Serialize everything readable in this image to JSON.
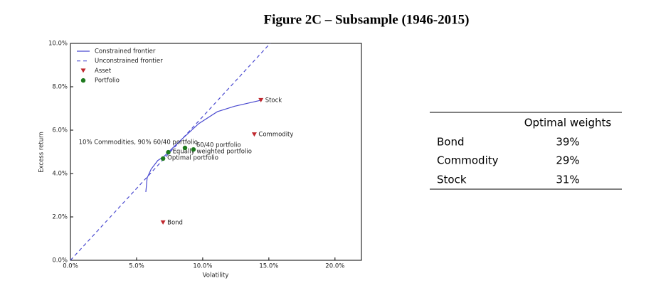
{
  "title": "Figure 2C – Subsample (1946-2015)",
  "chart_data": {
    "type": "line",
    "xlabel": "Volatility",
    "ylabel": "Excess return",
    "xlim": [
      0,
      22
    ],
    "ylim": [
      0,
      10
    ],
    "xticks": [
      {
        "value": 0,
        "label": "0.0%"
      },
      {
        "value": 5,
        "label": "5.0%"
      },
      {
        "value": 10,
        "label": "10.0%"
      },
      {
        "value": 15,
        "label": "15.0%"
      },
      {
        "value": 20,
        "label": "20.0%"
      }
    ],
    "yticks": [
      {
        "value": 0,
        "label": "0.0%"
      },
      {
        "value": 2,
        "label": "2.0%"
      },
      {
        "value": 4,
        "label": "4.0%"
      },
      {
        "value": 6,
        "label": "6.0%"
      },
      {
        "value": 8,
        "label": "8.0%"
      },
      {
        "value": 10,
        "label": "10.0%"
      }
    ],
    "legend": "upper left",
    "series": [
      {
        "name": "Constrained frontier",
        "color": "#4a4ad0",
        "style": "solid",
        "x": [
          5.7,
          5.8,
          6.1,
          6.6,
          7.1,
          8.1,
          9.7,
          11.1,
          12.4,
          14.4
        ],
        "values": [
          3.15,
          3.8,
          4.2,
          4.6,
          4.8,
          5.4,
          6.3,
          6.85,
          7.1,
          7.38
        ]
      },
      {
        "name": "Unconstrained frontier",
        "color": "#4a4ad0",
        "style": "dashed",
        "x": [
          0,
          15.1
        ],
        "values": [
          0,
          10
        ]
      },
      {
        "name": "Asset",
        "color": "#c0272d",
        "style": "marker",
        "marker": "triangle",
        "x": [
          7.0,
          13.9,
          14.4
        ],
        "values": [
          1.74,
          5.8,
          7.38
        ],
        "point_labels": [
          "Bond",
          "Commodity",
          "Stock"
        ]
      },
      {
        "name": "Portfolio",
        "color": "#1e7a1e",
        "style": "marker",
        "marker": "circle",
        "x": [
          7.0,
          7.4,
          9.3,
          8.66
        ],
        "values": [
          4.69,
          4.98,
          5.11,
          5.18
        ],
        "point_labels": [
          "Optimal portfolio",
          "Equally weighted portfolio",
          "60/40 portfolio",
          "10% Commodities, 90% 60/40 portfolio"
        ]
      }
    ]
  },
  "table": {
    "header": [
      "",
      "Optimal weights"
    ],
    "rows": [
      [
        "Bond",
        "39%"
      ],
      [
        "Commodity",
        "29%"
      ],
      [
        "Stock",
        "31%"
      ]
    ]
  }
}
